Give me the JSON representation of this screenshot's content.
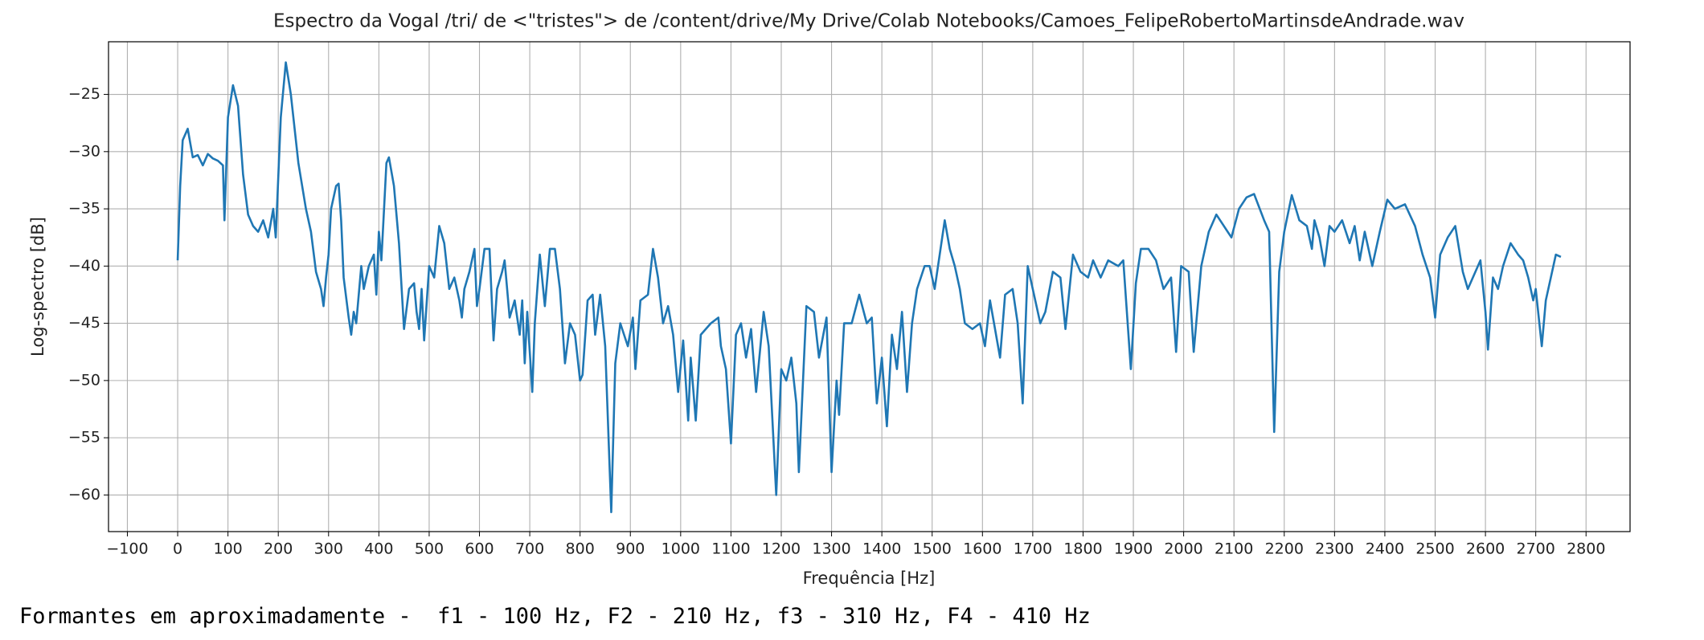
{
  "chart_data": {
    "type": "line",
    "title": "Espectro da Vogal /tri/ de <\"tristes\"> de /content/drive/My Drive/Colab Notebooks/Camoes_FelipeRobertoMartinsdeAndrade.wav",
    "xlabel": "Frequência [Hz]",
    "ylabel": "Log-spectro [dB]",
    "grid": true,
    "xlim": [
      -137.5,
      2887.5
    ],
    "ylim": [
      -63.2,
      -20.4
    ],
    "xticks": [
      {
        "value": -100,
        "label": "−100"
      },
      0,
      100,
      200,
      300,
      400,
      500,
      600,
      700,
      800,
      900,
      1000,
      1100,
      1200,
      1300,
      1400,
      1500,
      1600,
      1700,
      1800,
      1900,
      2000,
      2100,
      2200,
      2300,
      2400,
      2500,
      2600,
      2700,
      2800
    ],
    "yticks": [
      {
        "value": -60,
        "label": "−60"
      },
      {
        "value": -55,
        "label": "−55"
      },
      {
        "value": -50,
        "label": "−50"
      },
      {
        "value": -45,
        "label": "−45"
      },
      {
        "value": -40,
        "label": "−40"
      },
      {
        "value": -35,
        "label": "−35"
      },
      {
        "value": -30,
        "label": "−30"
      },
      {
        "value": -25,
        "label": "−25"
      }
    ],
    "series": [
      {
        "color": "#1f77b4",
        "x": [
          0,
          5,
          10,
          20,
          30,
          40,
          50,
          60,
          70,
          80,
          90,
          93,
          100,
          110,
          120,
          130,
          140,
          150,
          160,
          170,
          180,
          190,
          195,
          205,
          215,
          225,
          240,
          255,
          265,
          275,
          285,
          290,
          295,
          300,
          305,
          315,
          320,
          325,
          330,
          340,
          345,
          350,
          355,
          365,
          370,
          380,
          390,
          395,
          400,
          405,
          415,
          420,
          430,
          440,
          450,
          460,
          470,
          475,
          480,
          485,
          490,
          500,
          510,
          520,
          530,
          540,
          550,
          560,
          565,
          570,
          580,
          590,
          595,
          600,
          610,
          620,
          628,
          635,
          645,
          650,
          660,
          670,
          680,
          685,
          690,
          695,
          705,
          710,
          720,
          730,
          740,
          750,
          760,
          770,
          780,
          790,
          800,
          805,
          815,
          825,
          830,
          840,
          850,
          862,
          870,
          880,
          895,
          905,
          910,
          920,
          935,
          945,
          955,
          965,
          975,
          985,
          995,
          1005,
          1015,
          1020,
          1030,
          1040,
          1050,
          1060,
          1075,
          1080,
          1090,
          1100,
          1110,
          1120,
          1130,
          1140,
          1150,
          1165,
          1175,
          1190,
          1200,
          1210,
          1220,
          1230,
          1235,
          1250,
          1265,
          1275,
          1290,
          1300,
          1310,
          1315,
          1325,
          1340,
          1355,
          1370,
          1380,
          1390,
          1400,
          1410,
          1420,
          1430,
          1440,
          1450,
          1460,
          1470,
          1485,
          1495,
          1505,
          1515,
          1525,
          1535,
          1545,
          1555,
          1565,
          1580,
          1595,
          1605,
          1615,
          1625,
          1635,
          1645,
          1660,
          1670,
          1680,
          1690,
          1700,
          1715,
          1725,
          1740,
          1755,
          1765,
          1780,
          1795,
          1810,
          1820,
          1835,
          1850,
          1870,
          1880,
          1895,
          1905,
          1915,
          1930,
          1945,
          1960,
          1975,
          1985,
          1995,
          2010,
          2020,
          2035,
          2050,
          2065,
          2080,
          2095,
          2110,
          2125,
          2140,
          2160,
          2170,
          2180,
          2190,
          2200,
          2215,
          2230,
          2245,
          2255,
          2260,
          2270,
          2280,
          2290,
          2300,
          2315,
          2330,
          2340,
          2350,
          2360,
          2375,
          2390,
          2405,
          2420,
          2440,
          2460,
          2475,
          2490,
          2500,
          2510,
          2525,
          2540,
          2555,
          2565,
          2575,
          2590,
          2600,
          2605,
          2615,
          2625,
          2635,
          2650,
          2665,
          2675,
          2685,
          2695,
          2700,
          2712,
          2720,
          2730,
          2740,
          2750
        ],
        "values": [
          -39.5,
          -33,
          -29,
          -28,
          -30.5,
          -30.3,
          -31.2,
          -30.2,
          -30.6,
          -30.8,
          -31.2,
          -36,
          -27,
          -24.2,
          -26,
          -32,
          -35.5,
          -36.5,
          -37,
          -36,
          -37.5,
          -35,
          -37.5,
          -27,
          -22.2,
          -25,
          -31,
          -35,
          -37,
          -40.5,
          -42,
          -43.5,
          -41,
          -39,
          -35,
          -33,
          -32.8,
          -36,
          -41,
          -44.5,
          -46,
          -44,
          -45,
          -40,
          -42,
          -40,
          -39,
          -42.5,
          -37,
          -39.5,
          -31,
          -30.5,
          -33,
          -38,
          -45.5,
          -42,
          -41.5,
          -44,
          -45.5,
          -42,
          -46.5,
          -40,
          -41,
          -36.5,
          -38,
          -42,
          -41,
          -43,
          -44.5,
          -42,
          -40.5,
          -38.5,
          -43.5,
          -42,
          -38.5,
          -38.5,
          -46.5,
          -42,
          -40.5,
          -39.5,
          -44.5,
          -43,
          -46,
          -43,
          -48.5,
          -44,
          -51,
          -45,
          -39,
          -43.5,
          -38.5,
          -38.5,
          -42,
          -48.5,
          -45,
          -46,
          -50,
          -49.5,
          -43,
          -42.5,
          -46,
          -42.5,
          -47,
          -61.5,
          -48.5,
          -45,
          -47,
          -44.5,
          -49,
          -43,
          -42.5,
          -38.5,
          -41,
          -45,
          -43.5,
          -46,
          -51,
          -46.5,
          -53.5,
          -48,
          -53.5,
          -46,
          -45.5,
          -45,
          -44.5,
          -47,
          -49,
          -55.5,
          -46,
          -45,
          -48,
          -45.5,
          -51,
          -44,
          -47,
          -60,
          -49,
          -50,
          -48,
          -52,
          -58,
          -43.5,
          -44,
          -48,
          -44.5,
          -58,
          -50,
          -53,
          -45,
          -45,
          -42.5,
          -45,
          -44.5,
          -52,
          -48,
          -54,
          -46,
          -49,
          -44,
          -51,
          -45,
          -42,
          -40,
          -40,
          -42,
          -39,
          -36,
          -38.5,
          -40,
          -42,
          -45,
          -45.5,
          -45,
          -47,
          -43,
          -45.5,
          -48,
          -42.5,
          -42,
          -45,
          -52,
          -40,
          -42,
          -45,
          -44,
          -40.5,
          -41,
          -45.5,
          -39,
          -40.5,
          -41,
          -39.5,
          -41,
          -39.5,
          -40,
          -39.5,
          -49,
          -41.5,
          -38.5,
          -38.5,
          -39.5,
          -42,
          -41,
          -47.5,
          -40,
          -40.5,
          -47.5,
          -40,
          -37,
          -35.5,
          -36.5,
          -37.5,
          -35,
          -34,
          -33.7,
          -36,
          -37,
          -54.5,
          -40.5,
          -37,
          -33.8,
          -36,
          -36.5,
          -38.5,
          -36,
          -37.5,
          -40,
          -36.5,
          -37,
          -36,
          -38,
          -36.5,
          -39.5,
          -37,
          -40,
          -37,
          -34.2,
          -35,
          -34.6,
          -36.5,
          -39,
          -41,
          -44.5,
          -39,
          -37.5,
          -36.5,
          -40.5,
          -42,
          -41,
          -39.5,
          -44,
          -47.3,
          -41,
          -42,
          -40,
          -38,
          -39,
          -39.5,
          -41,
          -43,
          -42,
          -47,
          -43,
          -41,
          -39,
          -39.2
        ]
      }
    ]
  },
  "note": "Formantes em aproximadamente -  f1 - 100 Hz, F2 - 210 Hz, f3 - 310 Hz, F4 - 410 Hz"
}
